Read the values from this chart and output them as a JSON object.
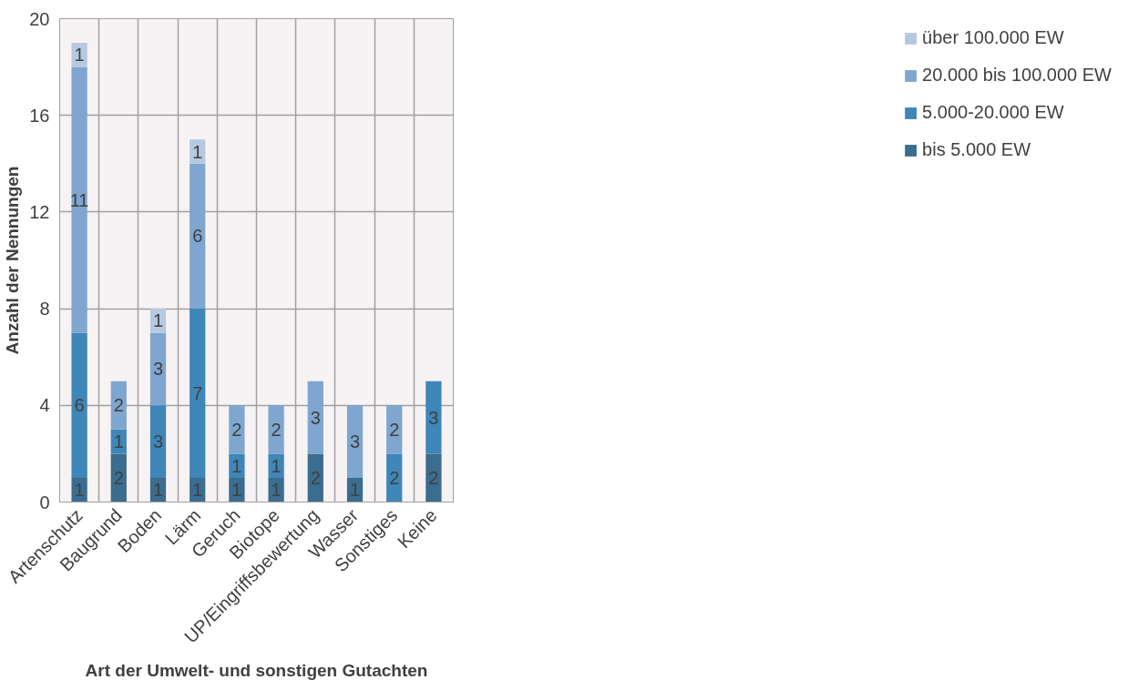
{
  "chart_data": {
    "type": "bar",
    "stacked": true,
    "data_labels": true,
    "grid": true,
    "legend": "right",
    "xlabel": "Art der Umwelt- und sonstigen Gutachten",
    "ylabel": "Anzahl der Nennungen",
    "categories": [
      "Artenschutz",
      "Baugrund",
      "Boden",
      "Lärm",
      "Geruch",
      "Biotope",
      "UP/Eingriffsbewertung",
      "Wasser",
      "Sonstiges",
      "Keine"
    ],
    "ylim": [
      0,
      20
    ],
    "yticks": [
      0,
      4,
      8,
      12,
      16,
      20
    ],
    "series": [
      {
        "name": "bis 5.000 EW",
        "color": "#3a6d8f",
        "values": [
          1,
          2,
          1,
          1,
          1,
          1,
          2,
          1,
          null,
          2
        ]
      },
      {
        "name": "5.000-20.000 EW",
        "color": "#3f86b9",
        "values": [
          6,
          1,
          3,
          7,
          1,
          1,
          null,
          null,
          2,
          3
        ]
      },
      {
        "name": "20.000 bis 100.000 EW",
        "color": "#7ea6cf",
        "values": [
          11,
          2,
          3,
          6,
          2,
          2,
          3,
          3,
          2,
          null
        ]
      },
      {
        "name": "über 100.000 EW",
        "color": "#b5c9e1",
        "values": [
          1,
          null,
          1,
          1,
          null,
          null,
          null,
          null,
          null,
          null
        ]
      }
    ]
  }
}
